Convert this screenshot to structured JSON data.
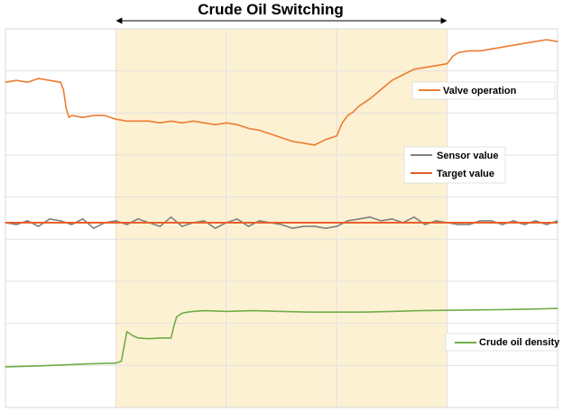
{
  "chart_data": {
    "type": "line",
    "title": "Crude Oil Switching",
    "xlabel": "",
    "ylabel": "",
    "grid": true,
    "x_range": [
      0,
      100
    ],
    "highlight_span": [
      20,
      80
    ],
    "colors": {
      "valve": "#ed7d31",
      "sensor": "#808080",
      "target": "#e8602c",
      "density": "#70ad47",
      "highlight": "#fdf1d3"
    },
    "series": [
      {
        "name": "Valve operation",
        "color_key": "valve",
        "x": [
          0,
          2,
          4,
          6,
          8,
          10,
          10.5,
          11,
          11.5,
          12,
          14,
          16,
          18,
          20,
          22,
          24,
          26,
          28,
          30,
          32,
          34,
          36,
          38,
          40,
          42,
          44,
          46,
          48,
          50,
          52,
          54,
          56,
          58,
          60,
          61,
          62,
          63,
          64,
          66,
          68,
          70,
          72,
          74,
          76,
          78,
          80,
          81,
          82,
          84,
          86,
          88,
          90,
          92,
          94,
          96,
          98,
          100
        ],
        "y": [
          88,
          88.5,
          88,
          89,
          88.5,
          88,
          86,
          81,
          78.5,
          79,
          78.5,
          79,
          79,
          78,
          77.5,
          77.5,
          77.5,
          77,
          77.5,
          77,
          77.5,
          77,
          76.5,
          77,
          76.5,
          75.5,
          75,
          74,
          73,
          72,
          71.5,
          71,
          72.5,
          73.5,
          77,
          79,
          80,
          81.5,
          83.5,
          86,
          88.5,
          90,
          91.5,
          92,
          92.5,
          93,
          95,
          96,
          96.5,
          96.5,
          97,
          97.5,
          98,
          98.5,
          99,
          99.5,
          99
        ]
      },
      {
        "name": "Sensor value",
        "color_key": "sensor",
        "x": [
          0,
          2,
          4,
          6,
          8,
          10,
          12,
          14,
          16,
          18,
          20,
          22,
          24,
          26,
          28,
          30,
          32,
          34,
          36,
          38,
          40,
          42,
          44,
          46,
          48,
          50,
          52,
          54,
          56,
          58,
          60,
          62,
          64,
          66,
          68,
          70,
          72,
          74,
          76,
          78,
          80,
          82,
          84,
          86,
          88,
          90,
          92,
          94,
          96,
          98,
          100
        ],
        "y": [
          50,
          49.5,
          50.5,
          49,
          51,
          50.5,
          49.5,
          51,
          48.5,
          50,
          50.5,
          49.5,
          51,
          50,
          49,
          51.5,
          49,
          50,
          50.5,
          48.5,
          50,
          51,
          49,
          50.5,
          50,
          49.5,
          48.5,
          49,
          49,
          48.5,
          49,
          50.5,
          51,
          51.5,
          50.5,
          51,
          50,
          51.5,
          49.5,
          50.5,
          50,
          49.5,
          49.5,
          50.5,
          50.5,
          49.5,
          50.5,
          49.5,
          50.5,
          49.5,
          50.5
        ]
      },
      {
        "name": "Target value",
        "color_key": "target",
        "x": [
          0,
          100
        ],
        "y": [
          50,
          50
        ]
      },
      {
        "name": "Crude oil density",
        "color_key": "density",
        "x": [
          0,
          5,
          10,
          15,
          20,
          21,
          22,
          23,
          24,
          26,
          28,
          30,
          30.5,
          31,
          32,
          33,
          34,
          36,
          40,
          45,
          50,
          55,
          60,
          65,
          70,
          75,
          80,
          85,
          90,
          95,
          100
        ],
        "y": [
          11,
          11.2,
          11.5,
          11.8,
          12,
          12.5,
          20.5,
          19.5,
          18.8,
          18.6,
          18.8,
          18.8,
          22,
          24.5,
          25.5,
          25.8,
          26,
          26.2,
          26,
          26.2,
          26,
          25.8,
          25.8,
          25.8,
          26,
          26.2,
          26.3,
          26.4,
          26.5,
          26.6,
          26.8
        ]
      }
    ],
    "legends": [
      {
        "label": "Valve operation",
        "color_key": "valve",
        "placement": "upper-right"
      },
      {
        "label": "Sensor value",
        "color_key": "sensor",
        "placement": "right"
      },
      {
        "label": "Target value",
        "color_key": "target",
        "placement": "right"
      },
      {
        "label": "Crude oil density",
        "color_key": "density",
        "placement": "lower-right"
      }
    ]
  }
}
